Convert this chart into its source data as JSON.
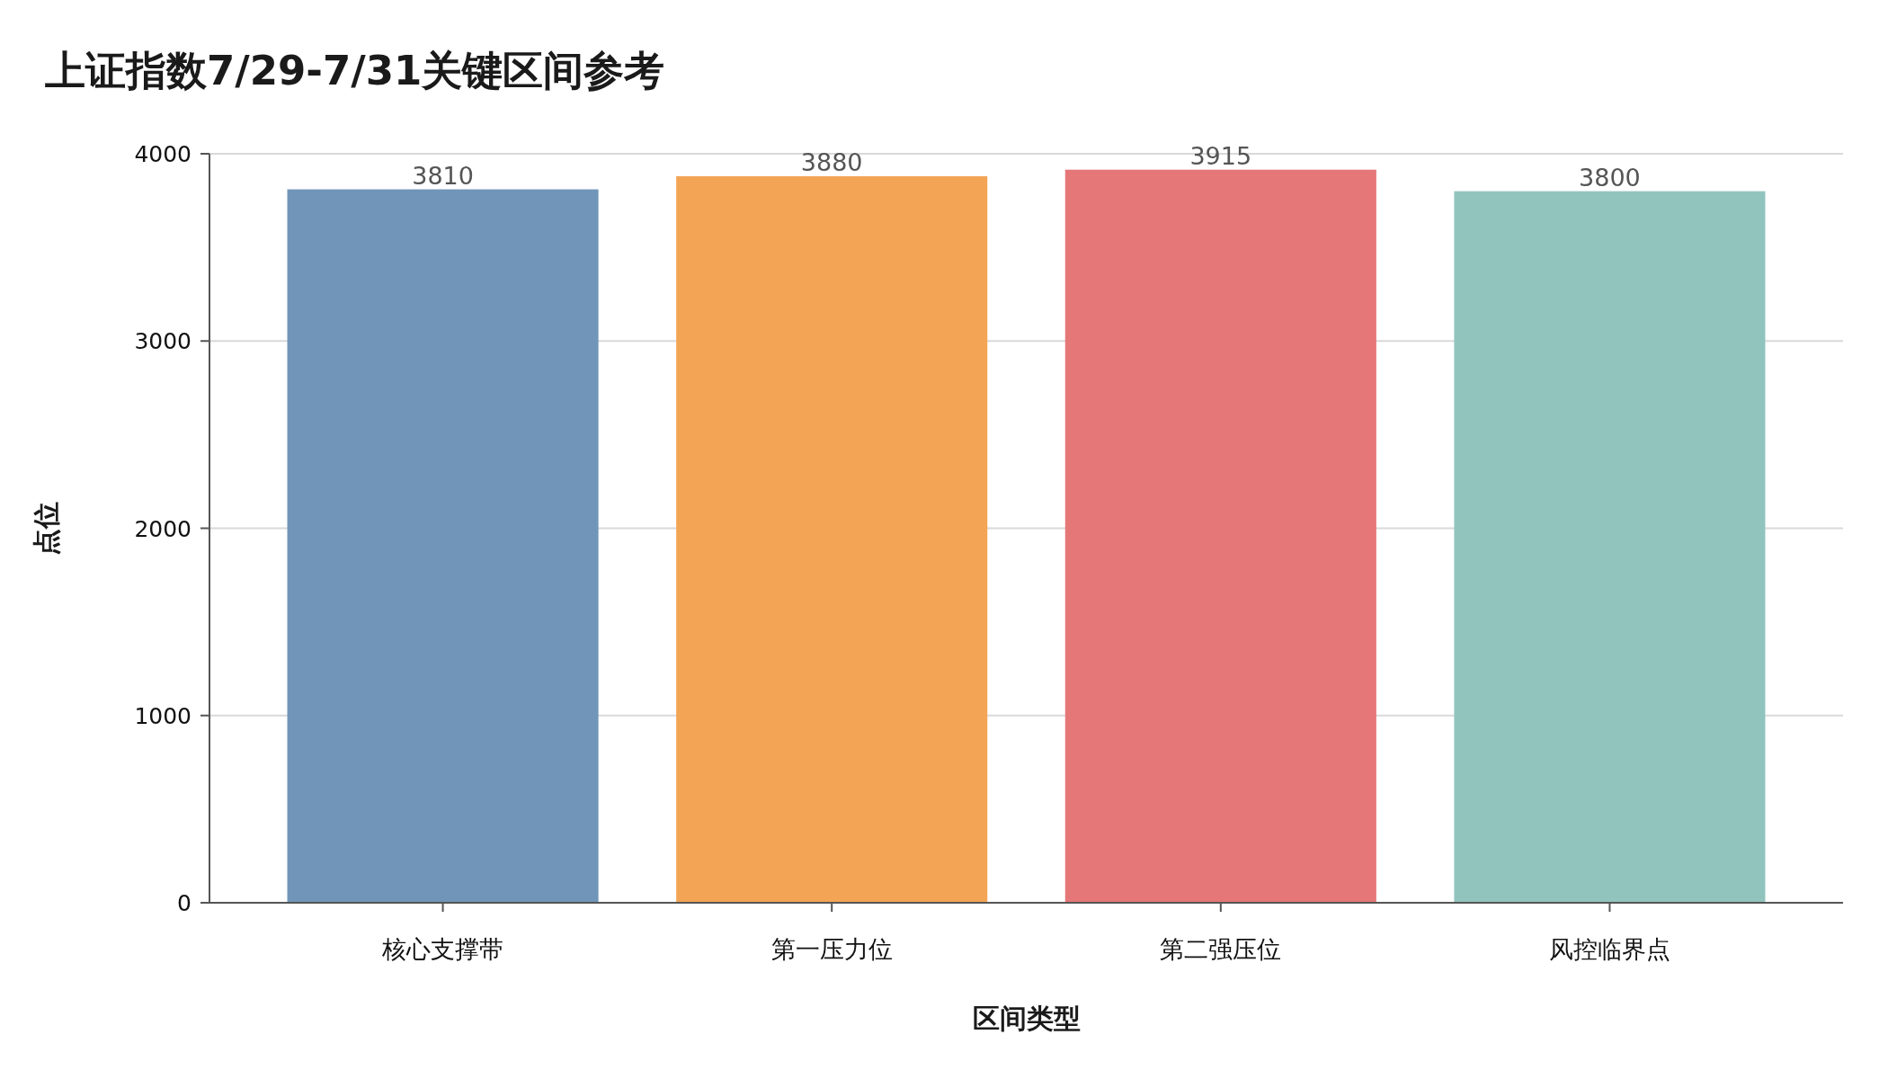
{
  "chart_data": {
    "type": "bar",
    "title": "上证指数7/29-7/31关键区间参考",
    "xlabel": "区间类型",
    "ylabel": "点位",
    "categories": [
      "核心支撑带",
      "第一压力位",
      "第二强压位",
      "风控临界点"
    ],
    "values": [
      3810,
      3880,
      3915,
      3800
    ],
    "colors": [
      "#7095b8",
      "#f3a555",
      "#e67778",
      "#92c4be"
    ],
    "ylim": [
      0,
      4000
    ],
    "yticks": [
      0,
      1000,
      2000,
      3000,
      4000
    ],
    "grid": "y",
    "data_labels": true
  }
}
